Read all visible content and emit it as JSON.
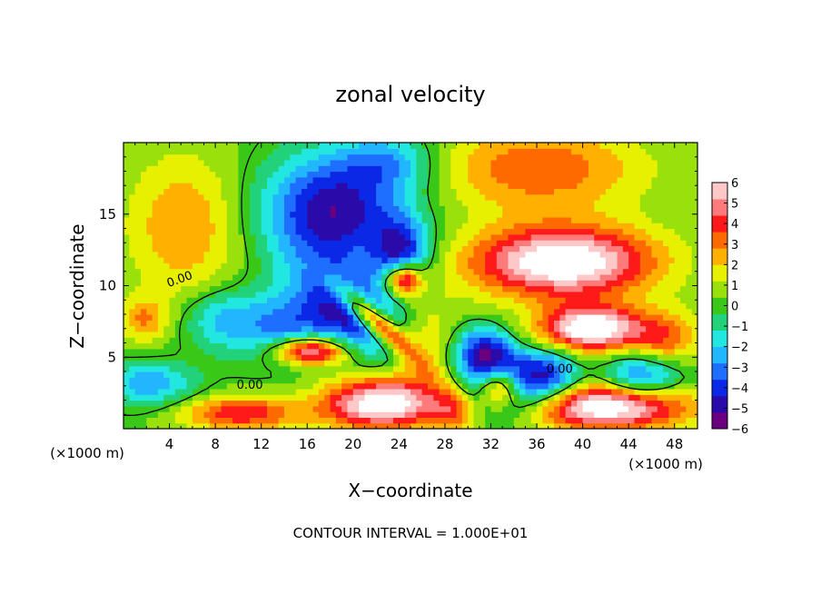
{
  "chart_data": {
    "type": "heatmap",
    "title": "zonal velocity",
    "xlabel": "X−coordinate",
    "ylabel": "Z−coordinate",
    "x_units": "(×1000 m)",
    "z_units": "(×1000 m)",
    "xlim": [
      0,
      50
    ],
    "ylim": [
      0,
      20
    ],
    "x_ticks": [
      4,
      8,
      12,
      16,
      20,
      24,
      28,
      32,
      36,
      40,
      44,
      48
    ],
    "y_ticks": [
      5,
      10,
      15
    ],
    "colorbar": {
      "range": [
        -6,
        6
      ],
      "ticks": [
        "6",
        "5",
        "4",
        "3",
        "2",
        "1",
        "0",
        "−1",
        "−2",
        "−3",
        "−4",
        "−5",
        "−6"
      ],
      "colors": [
        "#6a0080",
        "#2a0aa8",
        "#0a28e6",
        "#1f6fff",
        "#22b6ff",
        "#22e6e0",
        "#22d27a",
        "#3ac818",
        "#9ae00a",
        "#e6f000",
        "#ffb000",
        "#ff6a00",
        "#ff1a1a",
        "#ff7a7a",
        "#ffc8c8",
        "#ffffff"
      ]
    },
    "contour_labels": [
      "0.00",
      "0.00",
      "0.00"
    ],
    "contour_interval_text": "CONTOUR INTERVAL = 1.000E+01",
    "field_features": [
      {
        "kind": "jet",
        "x": 38,
        "z": 11.5,
        "value": 7,
        "rx": 8,
        "rz": 2.5,
        "angle": 0
      },
      {
        "kind": "jet",
        "x": 40.5,
        "z": 6.8,
        "value": 7,
        "rx": 4.5,
        "rz": 1.6,
        "angle": 0
      },
      {
        "kind": "jet",
        "x": 42,
        "z": 1.4,
        "value": 7,
        "rx": 7,
        "rz": 1.6,
        "angle": 0
      },
      {
        "kind": "jet",
        "x": 22,
        "z": 1.6,
        "value": 6.5,
        "rx": 5,
        "rz": 1.8,
        "angle": 0
      },
      {
        "kind": "jet",
        "x": 10,
        "z": 0.9,
        "value": 4,
        "rx": 5,
        "rz": 1.2,
        "angle": 0
      },
      {
        "kind": "jet",
        "x": 16,
        "z": 5.3,
        "value": 6.5,
        "rx": 3.2,
        "rz": 1,
        "angle": 0
      },
      {
        "kind": "jet",
        "x": 21.5,
        "z": 7.5,
        "value": 6.5,
        "rx": 4,
        "rz": 0.9,
        "angle": -35
      },
      {
        "kind": "jet",
        "x": 24.2,
        "z": 10.3,
        "value": 6.5,
        "rx": 1.6,
        "rz": 1.2,
        "angle": 0
      },
      {
        "kind": "jet",
        "x": 32.5,
        "z": 2.8,
        "value": 6.5,
        "rx": 1.8,
        "rz": 1.4,
        "angle": 0
      },
      {
        "kind": "jet",
        "x": 36,
        "z": 18,
        "value": 3.2,
        "rx": 9,
        "rz": 3,
        "angle": 0
      },
      {
        "kind": "jet",
        "x": 47,
        "z": 6,
        "value": 3,
        "rx": 3,
        "rz": 2,
        "angle": 0
      },
      {
        "kind": "jet",
        "x": 28.5,
        "z": 1,
        "value": 2.5,
        "rx": 1.8,
        "rz": 1.5,
        "angle": 0
      },
      {
        "kind": "jet",
        "x": 5,
        "z": 14,
        "value": 2.5,
        "rx": 5,
        "rz": 5,
        "angle": 0
      },
      {
        "kind": "jet",
        "x": 1.5,
        "z": 7.5,
        "value": 2.5,
        "rx": 2,
        "rz": 1.5,
        "angle": 0
      },
      {
        "kind": "jet",
        "x": 26,
        "z": 5,
        "value": 2,
        "rx": 3,
        "rz": 4,
        "angle": 0
      },
      {
        "kind": "jet",
        "x": 18,
        "z": 15,
        "value": -5.5,
        "rx": 6,
        "rz": 4,
        "angle": 0
      },
      {
        "kind": "jet",
        "x": 20,
        "z": 8,
        "value": -4.5,
        "rx": 5,
        "rz": 2.5,
        "angle": -30
      },
      {
        "kind": "jet",
        "x": 14,
        "z": 7,
        "value": -3.5,
        "rx": 5,
        "rz": 2.5,
        "angle": 0
      },
      {
        "kind": "jet",
        "x": 24,
        "z": 12,
        "value": -4.5,
        "rx": 2.5,
        "rz": 2.5,
        "angle": 0
      },
      {
        "kind": "jet",
        "x": 31,
        "z": 5.2,
        "value": -4.5,
        "rx": 2.5,
        "rz": 1.8,
        "angle": 0
      },
      {
        "kind": "jet",
        "x": 33,
        "z": 3,
        "value": -5.5,
        "rx": 3.2,
        "rz": 2.2,
        "angle": 0
      },
      {
        "kind": "jet",
        "x": 37,
        "z": 3.5,
        "value": -4,
        "rx": 2.5,
        "rz": 2,
        "angle": 0
      },
      {
        "kind": "jet",
        "x": 45,
        "z": 3.5,
        "value": -4,
        "rx": 3.5,
        "rz": 1.8,
        "angle": 0
      },
      {
        "kind": "jet",
        "x": 2,
        "z": 3,
        "value": -3,
        "rx": 4,
        "rz": 1.5,
        "angle": 0
      },
      {
        "kind": "jet",
        "x": 8,
        "z": 7.5,
        "value": -2,
        "rx": 3,
        "rz": 2,
        "angle": 0
      },
      {
        "kind": "jet",
        "x": 23,
        "z": 18.5,
        "value": -2.5,
        "rx": 4,
        "rz": 2,
        "angle": 0
      }
    ],
    "field_background": 0.3
  }
}
